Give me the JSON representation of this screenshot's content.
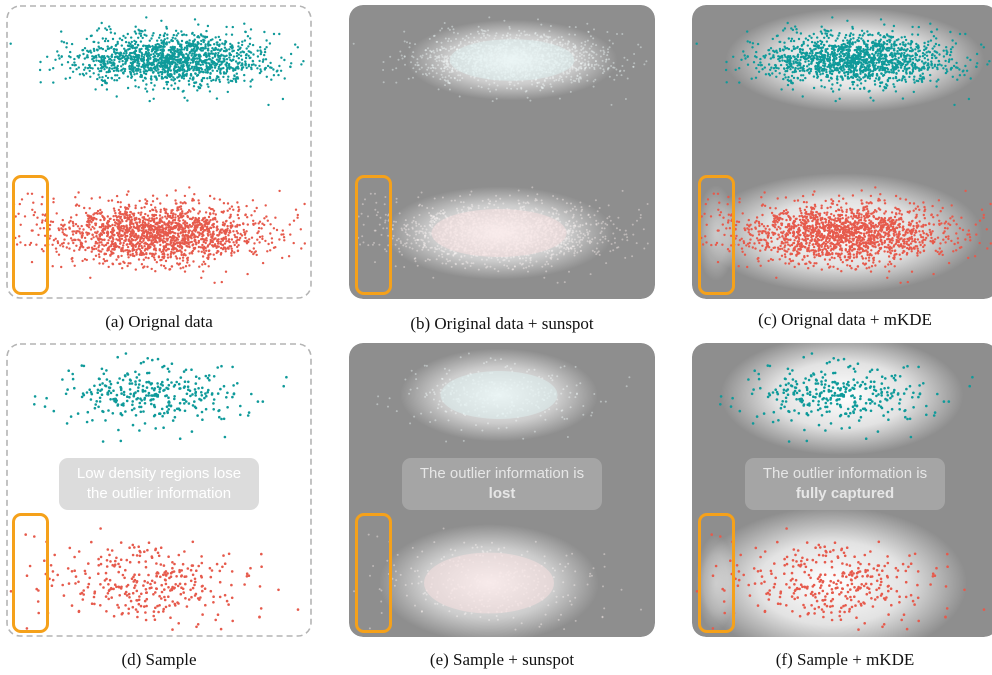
{
  "colors": {
    "cluster_top": "#0f9a9a",
    "cluster_bottom": "#e65a4c",
    "highlight": "#f5a11a",
    "gray_background": "#8e8e8e",
    "dashed_border": "#b4b4b4",
    "note_light_bg": "#dcdcdc",
    "note_dark_bg": "#a5a5a5"
  },
  "panels": [
    {
      "id": "a",
      "caption": "(a) Orignal data",
      "background": "white",
      "points": "full",
      "overlay": "none"
    },
    {
      "id": "b",
      "caption": "(b) Original data + sunspot",
      "background": "gray",
      "points": "full",
      "overlay": "sunspot"
    },
    {
      "id": "c",
      "caption": "(c) Orignal data + mKDE",
      "background": "gray",
      "points": "full",
      "overlay": "mkde"
    },
    {
      "id": "d",
      "caption": "(d) Sample",
      "background": "white",
      "points": "sample",
      "overlay": "none",
      "note": {
        "line1": "Low density regions lose",
        "line2": "the outlier information"
      }
    },
    {
      "id": "e",
      "caption": "(e) Sample + sunspot",
      "background": "gray",
      "points": "sample",
      "overlay": "sunspot",
      "note": {
        "line1": "The outlier information is",
        "line2": "lost"
      }
    },
    {
      "id": "f",
      "caption": "(f) Sample + mKDE",
      "background": "gray",
      "points": "sample",
      "overlay": "mkde",
      "note": {
        "line1": "The outlier information is",
        "line2": "fully captured"
      }
    }
  ]
}
